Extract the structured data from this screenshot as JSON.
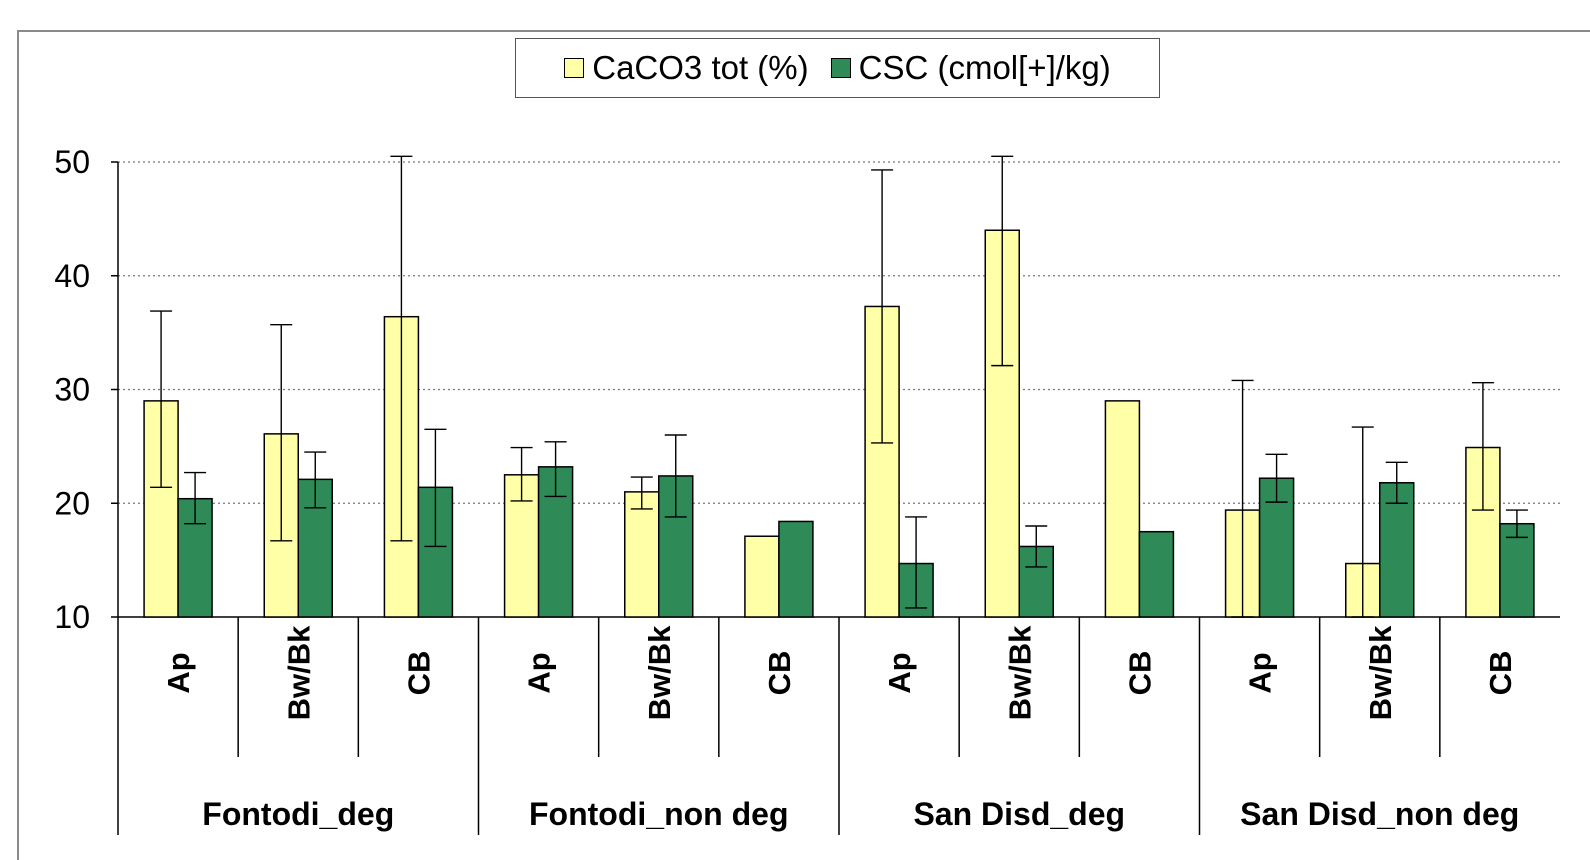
{
  "chart_data": {
    "type": "bar",
    "legend_position": "top-center",
    "grid": true,
    "ylim": [
      10,
      50
    ],
    "yticks": [
      "10",
      "20",
      "30",
      "40",
      "50"
    ],
    "groups": [
      {
        "name": "Fontodi_deg",
        "categories": [
          "Ap",
          "Bw/Bk",
          "CB"
        ]
      },
      {
        "name": "Fontodi_non deg",
        "categories": [
          "Ap",
          "Bw/Bk",
          "CB"
        ]
      },
      {
        "name": "San Disd_deg",
        "categories": [
          "Ap",
          "Bw/Bk",
          "CB"
        ]
      },
      {
        "name": "San Disd_non deg",
        "categories": [
          "Ap",
          "Bw/Bk",
          "CB"
        ]
      }
    ],
    "series": [
      {
        "name": "CaCO3 tot (%)",
        "color": "#ffffa8",
        "values": [
          29.0,
          26.1,
          36.4,
          22.5,
          21.0,
          17.1,
          37.3,
          44.0,
          29.0,
          19.4,
          14.7,
          24.9
        ],
        "err_high": [
          36.9,
          35.7,
          50.5,
          24.9,
          22.3,
          null,
          49.3,
          50.5,
          null,
          30.8,
          26.7,
          30.6
        ],
        "err_low": [
          21.4,
          16.7,
          16.7,
          20.2,
          19.5,
          null,
          25.3,
          32.1,
          null,
          10.0,
          10.0,
          19.4
        ]
      },
      {
        "name": "CSC (cmol[+]/kg)",
        "color": "#2e8b57",
        "values": [
          20.4,
          22.1,
          21.4,
          23.2,
          22.4,
          18.4,
          14.7,
          16.2,
          17.5,
          22.2,
          21.8,
          18.2
        ],
        "err_high": [
          22.7,
          24.5,
          26.5,
          25.4,
          26.0,
          null,
          18.8,
          18.0,
          null,
          24.3,
          23.6,
          19.4
        ],
        "err_low": [
          18.2,
          19.6,
          16.2,
          20.6,
          18.8,
          null,
          10.8,
          14.4,
          null,
          20.1,
          20.0,
          17.0
        ]
      }
    ]
  }
}
